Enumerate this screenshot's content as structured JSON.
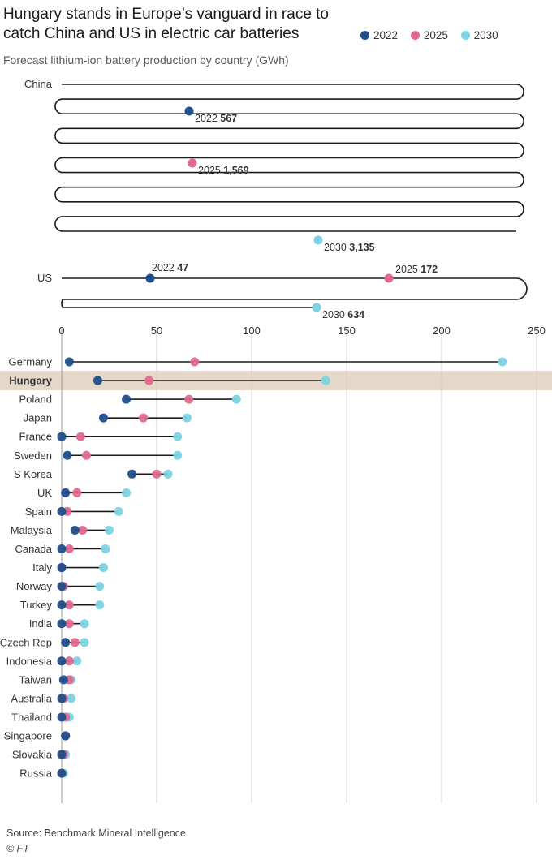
{
  "title": "Hungary stands in Europe’s vanguard in race to catch China and US in electric car batteries",
  "subtitle": "Forecast lithium-ion battery production by country (GWh)",
  "legend": [
    {
      "label": "2022",
      "color": "#1f4e8c"
    },
    {
      "label": "2025",
      "color": "#e0698f"
    },
    {
      "label": "2030",
      "color": "#7dd3e3"
    }
  ],
  "source": "Source: Benchmark Mineral Intelligence",
  "credit": "© FT",
  "chart_data": {
    "type": "scatter",
    "unit": "GWh",
    "xlim": [
      0,
      250
    ],
    "x_ticks": [
      0,
      50,
      100,
      150,
      200,
      250
    ],
    "highlight": "Hungary",
    "series_names": [
      "2022",
      "2025",
      "2030"
    ],
    "overflow_rows": [
      {
        "country": "China",
        "labels": [
          {
            "year": "2022",
            "value": 567,
            "text": "567"
          },
          {
            "year": "2025",
            "value": 1569,
            "text": "1,569"
          },
          {
            "year": "2030",
            "value": 3135,
            "text": "3,135"
          }
        ]
      },
      {
        "country": "US",
        "labels": [
          {
            "year": "2022",
            "value": 47,
            "text": "47"
          },
          {
            "year": "2025",
            "value": 172,
            "text": "172"
          },
          {
            "year": "2030",
            "value": 634,
            "text": "634"
          }
        ]
      }
    ],
    "countries": [
      {
        "country": "Germany",
        "values": [
          4,
          70,
          232
        ]
      },
      {
        "country": "Hungary",
        "values": [
          19,
          46,
          139
        ]
      },
      {
        "country": "Poland",
        "values": [
          34,
          67,
          92
        ]
      },
      {
        "country": "Japan",
        "values": [
          22,
          43,
          66
        ]
      },
      {
        "country": "France",
        "values": [
          0,
          10,
          61
        ]
      },
      {
        "country": "Sweden",
        "values": [
          3,
          13,
          61
        ]
      },
      {
        "country": "S Korea",
        "values": [
          37,
          50,
          56
        ]
      },
      {
        "country": "UK",
        "values": [
          2,
          8,
          34
        ]
      },
      {
        "country": "Spain",
        "values": [
          0,
          3,
          30
        ]
      },
      {
        "country": "Malaysia",
        "values": [
          7,
          11,
          25
        ]
      },
      {
        "country": "Canada",
        "values": [
          0,
          4,
          23
        ]
      },
      {
        "country": "Italy",
        "values": [
          0,
          0,
          22
        ]
      },
      {
        "country": "Norway",
        "values": [
          0,
          1,
          20
        ]
      },
      {
        "country": "Turkey",
        "values": [
          0,
          4,
          20
        ]
      },
      {
        "country": "India",
        "values": [
          0,
          4,
          12
        ]
      },
      {
        "country": "Czech Rep",
        "values": [
          2,
          7,
          12
        ]
      },
      {
        "country": "Indonesia",
        "values": [
          0,
          4,
          8
        ]
      },
      {
        "country": "Taiwan",
        "values": [
          1,
          4,
          5
        ]
      },
      {
        "country": "Australia",
        "values": [
          0,
          1,
          5
        ]
      },
      {
        "country": "Thailand",
        "values": [
          0,
          2,
          4
        ]
      },
      {
        "country": "Singapore",
        "values": [
          2,
          2,
          2
        ]
      },
      {
        "country": "Slovakia",
        "values": [
          0,
          1,
          2
        ]
      },
      {
        "country": "Russia",
        "values": [
          0,
          0,
          1
        ]
      }
    ]
  }
}
